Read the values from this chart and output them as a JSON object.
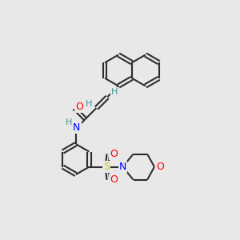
{
  "background_color": "#e8e8e8",
  "bond_color": "#2d2d2d",
  "atom_colors": {
    "N": "#0000ff",
    "O": "#ff0000",
    "S": "#cccc00",
    "H": "#4a9090",
    "C": "#2d2d2d"
  },
  "figsize": [
    3.0,
    3.0
  ],
  "dpi": 100
}
